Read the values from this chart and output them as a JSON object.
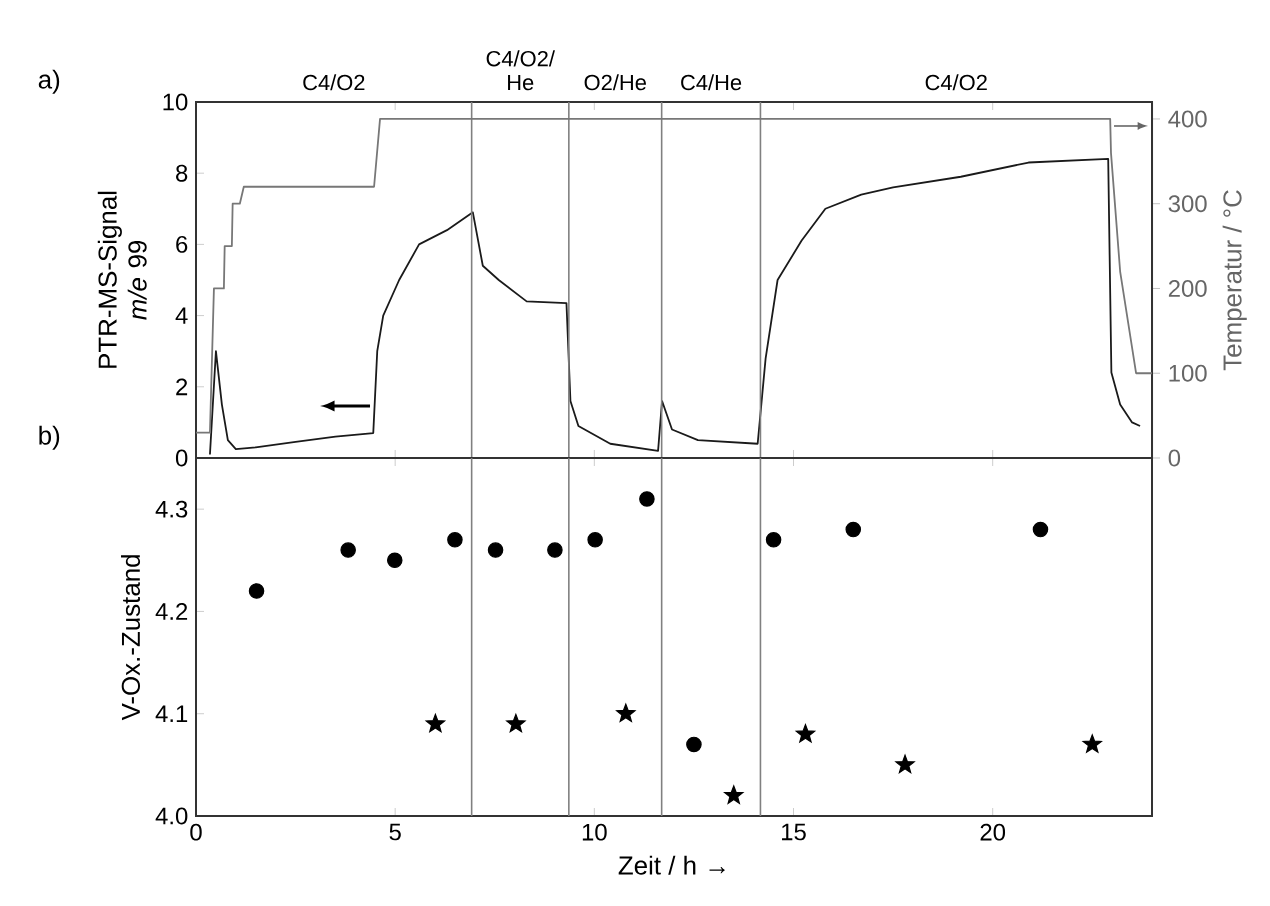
{
  "chart_data": [
    {
      "type": "line",
      "title": "a)",
      "ylabel": "PTR-MS-Signal\n*m/e* 99",
      "y2label": "Temperatur / °C",
      "xlim": [
        0,
        24
      ],
      "xticks": [
        0,
        5,
        10,
        15,
        20
      ],
      "ylim": [
        0,
        10
      ],
      "yticks": [
        0,
        2,
        4,
        6,
        8,
        10
      ],
      "y2lim": [
        0,
        420
      ],
      "y2ticks": [
        0,
        100,
        200,
        300,
        400
      ],
      "tick_labels": "y",
      "ref_lines": [
        {
          "axis": "x",
          "value": 6.92,
          "color": "#808080"
        },
        {
          "axis": "x",
          "value": 9.36,
          "color": "#808080"
        },
        {
          "axis": "x",
          "value": 11.69,
          "color": "#808080"
        },
        {
          "axis": "x",
          "value": 14.17,
          "color": "#808080"
        }
      ],
      "annotations": [
        "C4/O2",
        "C4/O2/\nHe",
        "O2/He",
        "C4/He",
        "C4/O2"
      ],
      "series": [
        {
          "color": "#1a1a1a",
          "x": [
            0.35,
            0.5,
            0.65,
            0.8,
            1.0,
            1.5,
            2.5,
            3.5,
            4.45,
            4.55,
            4.7,
            5.1,
            5.6,
            6.3,
            6.95,
            7.2,
            7.6,
            8.3,
            9.3,
            9.4,
            9.6,
            10.4,
            11.6,
            11.7,
            11.95,
            12.6,
            14.1,
            14.3,
            14.6,
            15.2,
            15.8,
            16.7,
            17.5,
            19.2,
            20.9,
            22.9,
            22.98,
            23.2,
            23.5,
            23.7
          ],
          "values": [
            0.1,
            3.0,
            1.5,
            0.5,
            0.25,
            0.3,
            0.45,
            0.6,
            0.7,
            3.0,
            4.0,
            5.0,
            6.0,
            6.4,
            6.9,
            5.4,
            5.0,
            4.4,
            4.35,
            1.6,
            0.9,
            0.4,
            0.2,
            1.6,
            0.8,
            0.5,
            0.4,
            2.8,
            5.0,
            6.1,
            7.0,
            7.4,
            7.6,
            7.9,
            8.3,
            8.4,
            2.4,
            1.5,
            1.0,
            0.9
          ]
        },
        {
          "axis": "y2",
          "color": "#777777",
          "x": [
            0,
            0.35,
            0.45,
            0.7,
            0.72,
            0.9,
            0.92,
            1.1,
            1.2,
            4.47,
            4.62,
            22.95,
            22.97,
            23.2,
            23.6,
            24
          ],
          "values": [
            30,
            30,
            200,
            200,
            250,
            250,
            300,
            300,
            320,
            320,
            400,
            400,
            360,
            220,
            100,
            100
          ]
        }
      ]
    },
    {
      "type": "scatter",
      "title": "b)",
      "xlabel": "Zeit / h  →",
      "ylabel": "V-Ox.-Zustand",
      "xlim": [
        0,
        24
      ],
      "xticks": [
        0,
        5,
        10,
        15,
        20
      ],
      "ylim": [
        4.0,
        4.35
      ],
      "yticks": [
        {
          "value": 4.0,
          "label": "4.0"
        },
        {
          "value": 4.1,
          "label": "4.1"
        },
        {
          "value": 4.2,
          "label": "4.2"
        },
        {
          "value": 4.3,
          "label": "4.3"
        }
      ],
      "ref_lines": [
        {
          "axis": "x",
          "value": 6.92,
          "color": "#808080"
        },
        {
          "axis": "x",
          "value": 9.36,
          "color": "#808080"
        },
        {
          "axis": "x",
          "value": 11.69,
          "color": "#808080"
        },
        {
          "axis": "x",
          "value": 14.17,
          "color": "#808080"
        }
      ],
      "series": [
        {
          "marker": "circle",
          "color": "#000000",
          "x": [
            1.52,
            3.82,
            4.99,
            6.5,
            7.52,
            9.01,
            10.02,
            11.32,
            12.5,
            14.5,
            16.5,
            21.2
          ],
          "values": [
            4.22,
            4.26,
            4.25,
            4.27,
            4.26,
            4.26,
            4.27,
            4.31,
            4.07,
            4.27,
            4.28,
            4.28
          ]
        },
        {
          "marker": "star",
          "color": "#000000",
          "x": [
            6.01,
            8.03,
            10.79,
            13.5,
            15.3,
            17.8,
            22.5
          ],
          "values": [
            4.09,
            4.09,
            4.1,
            4.02,
            4.08,
            4.05,
            4.07
          ]
        }
      ]
    }
  ]
}
